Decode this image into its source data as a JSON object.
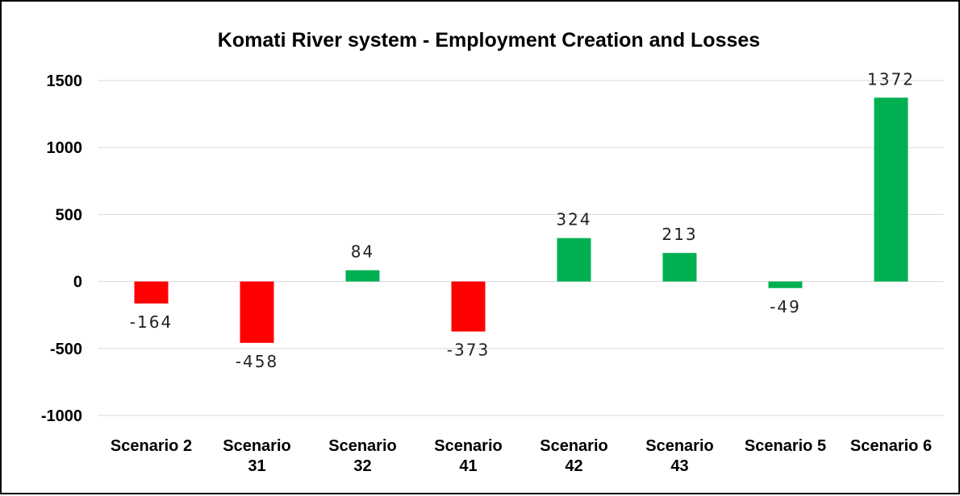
{
  "chart_data": {
    "type": "bar",
    "title": "Komati River system - Employment Creation and Losses",
    "categories": [
      [
        "Scenario 2"
      ],
      [
        "Scenario",
        "31"
      ],
      [
        "Scenario",
        "32"
      ],
      [
        "Scenario",
        "41"
      ],
      [
        "Scenario",
        "42"
      ],
      [
        "Scenario",
        "43"
      ],
      [
        "Scenario 5"
      ],
      [
        "Scenario 6"
      ]
    ],
    "values": [
      -164,
      -458,
      84,
      -373,
      324,
      213,
      -49,
      1372
    ],
    "colors": [
      "#ff0000",
      "#ff0000",
      "#00b050",
      "#ff0000",
      "#00b050",
      "#00b050",
      "#00b050",
      "#00b050"
    ],
    "ylim": [
      -1000,
      1500
    ],
    "yticks": [
      -1000,
      -500,
      0,
      500,
      1000,
      1500
    ],
    "grid": true,
    "legend": "none"
  }
}
